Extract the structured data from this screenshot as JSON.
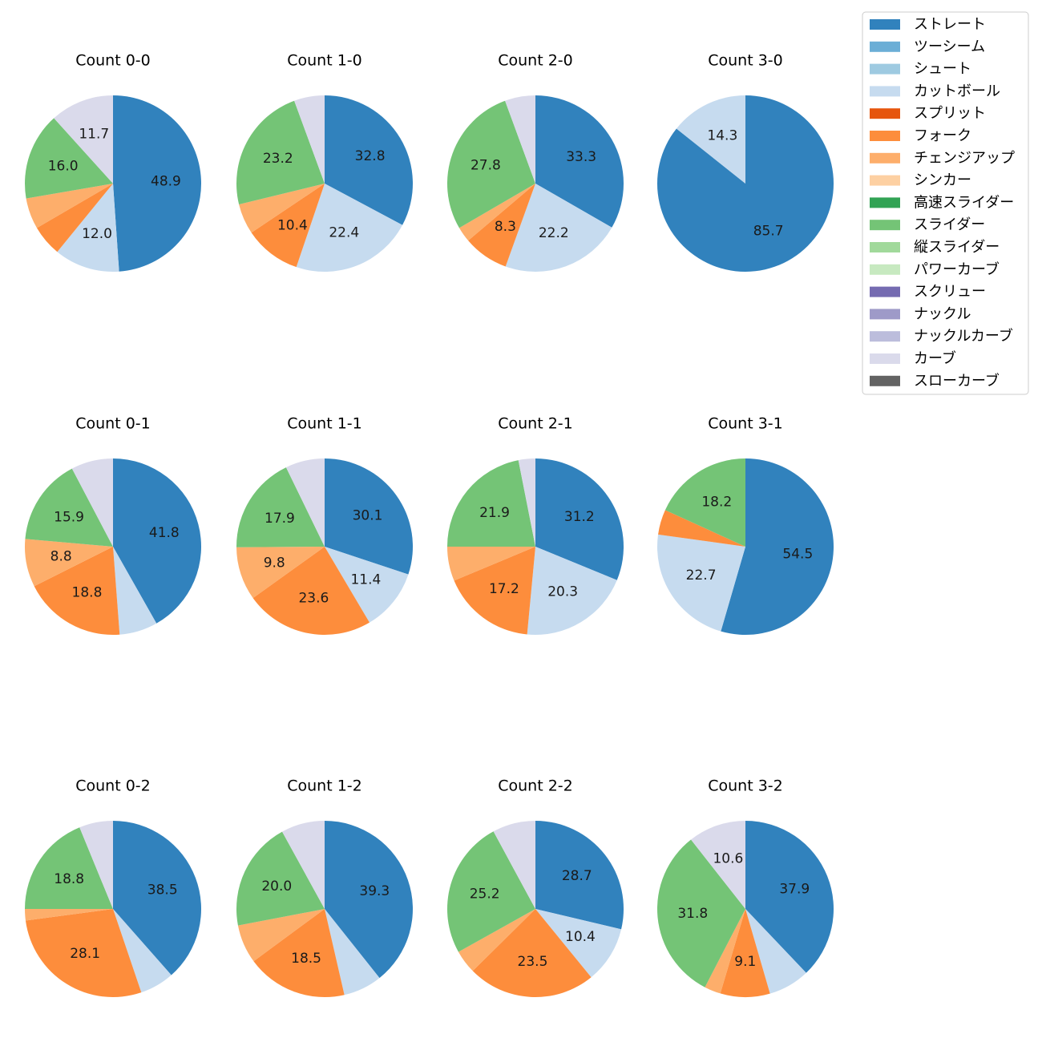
{
  "chart_data": {
    "type": "pie",
    "legend_position": "top-right",
    "legend": [
      {
        "name": "ストレート",
        "color": "#3182bd"
      },
      {
        "name": "ツーシーム",
        "color": "#6baed6"
      },
      {
        "name": "シュート",
        "color": "#9ecae1"
      },
      {
        "name": "カットボール",
        "color": "#c6dbef"
      },
      {
        "name": "スプリット",
        "color": "#e6550d"
      },
      {
        "name": "フォーク",
        "color": "#fd8d3c"
      },
      {
        "name": "チェンジアップ",
        "color": "#fdae6b"
      },
      {
        "name": "シンカー",
        "color": "#fdd0a2"
      },
      {
        "name": "高速スライダー",
        "color": "#31a354"
      },
      {
        "name": "スライダー",
        "color": "#74c476"
      },
      {
        "name": "縦スライダー",
        "color": "#a1d99b"
      },
      {
        "name": "パワーカーブ",
        "color": "#c7e9c0"
      },
      {
        "name": "スクリュー",
        "color": "#756bb1"
      },
      {
        "name": "ナックル",
        "color": "#9e9ac8"
      },
      {
        "name": "ナックルカーブ",
        "color": "#bcbddc"
      },
      {
        "name": "カーブ",
        "color": "#dadaeb"
      },
      {
        "name": "スローカーブ",
        "color": "#636363"
      }
    ],
    "pies": [
      {
        "title": "Count 0-0",
        "slices": [
          {
            "pitch": "ストレート",
            "value": 48.9,
            "label": "48.9"
          },
          {
            "pitch": "カットボール",
            "value": 12.0,
            "label": "12.0"
          },
          {
            "pitch": "フォーク",
            "value": 5.7,
            "label": ""
          },
          {
            "pitch": "チェンジアップ",
            "value": 5.7,
            "label": ""
          },
          {
            "pitch": "スライダー",
            "value": 16.0,
            "label": "16.0"
          },
          {
            "pitch": "カーブ",
            "value": 11.7,
            "label": "11.7"
          }
        ]
      },
      {
        "title": "Count 1-0",
        "slices": [
          {
            "pitch": "ストレート",
            "value": 32.8,
            "label": "32.8"
          },
          {
            "pitch": "カットボール",
            "value": 22.4,
            "label": "22.4"
          },
          {
            "pitch": "フォーク",
            "value": 10.4,
            "label": "10.4"
          },
          {
            "pitch": "チェンジアップ",
            "value": 5.6,
            "label": ""
          },
          {
            "pitch": "スライダー",
            "value": 23.2,
            "label": "23.2"
          },
          {
            "pitch": "カーブ",
            "value": 5.6,
            "label": ""
          }
        ]
      },
      {
        "title": "Count 2-0",
        "slices": [
          {
            "pitch": "ストレート",
            "value": 33.3,
            "label": "33.3"
          },
          {
            "pitch": "カットボール",
            "value": 22.2,
            "label": "22.2"
          },
          {
            "pitch": "フォーク",
            "value": 8.3,
            "label": "8.3"
          },
          {
            "pitch": "チェンジアップ",
            "value": 2.8,
            "label": ""
          },
          {
            "pitch": "スライダー",
            "value": 27.8,
            "label": "27.8"
          },
          {
            "pitch": "カーブ",
            "value": 5.6,
            "label": ""
          }
        ]
      },
      {
        "title": "Count 3-0",
        "slices": [
          {
            "pitch": "ストレート",
            "value": 85.7,
            "label": "85.7"
          },
          {
            "pitch": "カットボール",
            "value": 14.3,
            "label": "14.3"
          }
        ]
      },
      {
        "title": "Count 0-1",
        "slices": [
          {
            "pitch": "ストレート",
            "value": 41.8,
            "label": "41.8"
          },
          {
            "pitch": "カットボール",
            "value": 7.0,
            "label": ""
          },
          {
            "pitch": "フォーク",
            "value": 18.8,
            "label": "18.8"
          },
          {
            "pitch": "チェンジアップ",
            "value": 8.8,
            "label": "8.8"
          },
          {
            "pitch": "スライダー",
            "value": 15.9,
            "label": "15.9"
          },
          {
            "pitch": "カーブ",
            "value": 7.7,
            "label": ""
          }
        ]
      },
      {
        "title": "Count 1-1",
        "slices": [
          {
            "pitch": "ストレート",
            "value": 30.1,
            "label": "30.1"
          },
          {
            "pitch": "カットボール",
            "value": 11.4,
            "label": "11.4"
          },
          {
            "pitch": "フォーク",
            "value": 23.6,
            "label": "23.6"
          },
          {
            "pitch": "チェンジアップ",
            "value": 9.8,
            "label": "9.8"
          },
          {
            "pitch": "スライダー",
            "value": 17.9,
            "label": "17.9"
          },
          {
            "pitch": "カーブ",
            "value": 7.2,
            "label": ""
          }
        ]
      },
      {
        "title": "Count 2-1",
        "slices": [
          {
            "pitch": "ストレート",
            "value": 31.2,
            "label": "31.2"
          },
          {
            "pitch": "カットボール",
            "value": 20.3,
            "label": "20.3"
          },
          {
            "pitch": "フォーク",
            "value": 17.2,
            "label": "17.2"
          },
          {
            "pitch": "チェンジアップ",
            "value": 6.3,
            "label": ""
          },
          {
            "pitch": "スライダー",
            "value": 21.9,
            "label": "21.9"
          },
          {
            "pitch": "カーブ",
            "value": 3.1,
            "label": ""
          }
        ]
      },
      {
        "title": "Count 3-1",
        "slices": [
          {
            "pitch": "ストレート",
            "value": 54.5,
            "label": "54.5"
          },
          {
            "pitch": "カットボール",
            "value": 22.7,
            "label": "22.7"
          },
          {
            "pitch": "フォーク",
            "value": 4.6,
            "label": ""
          },
          {
            "pitch": "スライダー",
            "value": 18.2,
            "label": "18.2"
          }
        ]
      },
      {
        "title": "Count 0-2",
        "slices": [
          {
            "pitch": "ストレート",
            "value": 38.5,
            "label": "38.5"
          },
          {
            "pitch": "カットボール",
            "value": 6.3,
            "label": ""
          },
          {
            "pitch": "フォーク",
            "value": 28.1,
            "label": "28.1"
          },
          {
            "pitch": "チェンジアップ",
            "value": 2.1,
            "label": ""
          },
          {
            "pitch": "スライダー",
            "value": 18.8,
            "label": "18.8"
          },
          {
            "pitch": "カーブ",
            "value": 6.2,
            "label": ""
          }
        ]
      },
      {
        "title": "Count 1-2",
        "slices": [
          {
            "pitch": "ストレート",
            "value": 39.3,
            "label": "39.3"
          },
          {
            "pitch": "カットボール",
            "value": 7.1,
            "label": ""
          },
          {
            "pitch": "フォーク",
            "value": 18.5,
            "label": "18.5"
          },
          {
            "pitch": "チェンジアップ",
            "value": 7.1,
            "label": ""
          },
          {
            "pitch": "スライダー",
            "value": 20.0,
            "label": "20.0"
          },
          {
            "pitch": "カーブ",
            "value": 8.0,
            "label": ""
          }
        ]
      },
      {
        "title": "Count 2-2",
        "slices": [
          {
            "pitch": "ストレート",
            "value": 28.7,
            "label": "28.7"
          },
          {
            "pitch": "カットボール",
            "value": 10.4,
            "label": "10.4"
          },
          {
            "pitch": "フォーク",
            "value": 23.5,
            "label": "23.5"
          },
          {
            "pitch": "チェンジアップ",
            "value": 4.3,
            "label": ""
          },
          {
            "pitch": "スライダー",
            "value": 25.2,
            "label": "25.2"
          },
          {
            "pitch": "カーブ",
            "value": 7.9,
            "label": ""
          }
        ]
      },
      {
        "title": "Count 3-2",
        "slices": [
          {
            "pitch": "ストレート",
            "value": 37.9,
            "label": "37.9"
          },
          {
            "pitch": "カットボール",
            "value": 7.6,
            "label": ""
          },
          {
            "pitch": "フォーク",
            "value": 9.1,
            "label": "9.1"
          },
          {
            "pitch": "チェンジアップ",
            "value": 3.0,
            "label": ""
          },
          {
            "pitch": "スライダー",
            "value": 31.8,
            "label": "31.8"
          },
          {
            "pitch": "カーブ",
            "value": 10.6,
            "label": "10.6"
          }
        ]
      }
    ]
  }
}
